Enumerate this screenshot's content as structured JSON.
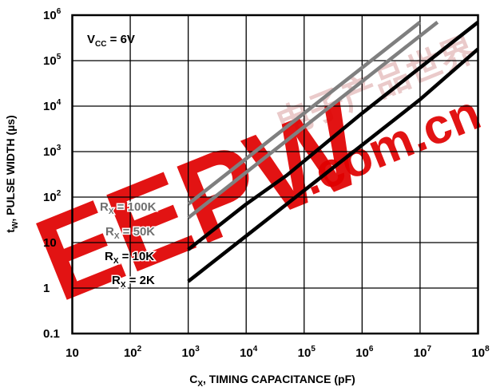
{
  "chart_data": {
    "type": "line",
    "xlabel": {
      "main": "C",
      "sub": "X",
      "rest": ", TIMING CAPACITANCE (pF)"
    },
    "ylabel": {
      "main": "t",
      "sub": "W",
      "rest": ", PULSE WIDTH (µs)"
    },
    "x_scale": "log",
    "y_scale": "log",
    "xlim": [
      10,
      100000000
    ],
    "ylim": [
      0.1,
      1000000
    ],
    "grid": true,
    "x_ticks": [
      {
        "base": "10",
        "exp": ""
      },
      {
        "base": "10",
        "exp": "2"
      },
      {
        "base": "10",
        "exp": "3"
      },
      {
        "base": "10",
        "exp": "4"
      },
      {
        "base": "10",
        "exp": "5"
      },
      {
        "base": "10",
        "exp": "6"
      },
      {
        "base": "10",
        "exp": "7"
      },
      {
        "base": "10",
        "exp": "8"
      }
    ],
    "y_ticks": [
      {
        "base": "0.1",
        "exp": ""
      },
      {
        "base": "1",
        "exp": ""
      },
      {
        "base": "10",
        "exp": ""
      },
      {
        "base": "10",
        "exp": "2"
      },
      {
        "base": "10",
        "exp": "3"
      },
      {
        "base": "10",
        "exp": "4"
      },
      {
        "base": "10",
        "exp": "5"
      },
      {
        "base": "10",
        "exp": "6"
      }
    ],
    "condition": {
      "main": "V",
      "sub": "CC",
      "rest": " = 6V"
    },
    "series": [
      {
        "label": {
          "main": "R",
          "sub": "X",
          "rest": " = 100K"
        },
        "color": "#7f7f7f",
        "x": [
          1000,
          10000,
          100000,
          1000000,
          10000000
        ],
        "y": [
          70,
          700,
          7000,
          70000,
          700000
        ]
      },
      {
        "label": {
          "main": "R",
          "sub": "X",
          "rest": " = 50K"
        },
        "color": "#7f7f7f",
        "x": [
          1000,
          10000,
          100000,
          1000000,
          10000000,
          20000000
        ],
        "y": [
          35,
          350,
          3500,
          35000,
          350000,
          700000
        ]
      },
      {
        "label": {
          "main": "R",
          "sub": "X",
          "rest": " = 10K"
        },
        "color": "#000000",
        "x": [
          1000,
          10000,
          50000,
          1000000,
          10000000,
          100000000
        ],
        "y": [
          7,
          70,
          300,
          7000,
          70000,
          700000
        ]
      },
      {
        "label": {
          "main": "R",
          "sub": "X",
          "rest": " = 2K"
        },
        "color": "#000000",
        "x": [
          1000,
          10000,
          100000,
          1000000,
          10000000,
          100000000
        ],
        "y": [
          1.4,
          14,
          140,
          1400,
          14000,
          180000
        ]
      }
    ]
  },
  "watermark": {
    "brand": "EEPW",
    "domain": ".com.cn",
    "chinese": "电子产品世界",
    "brand_color": "#e00000"
  }
}
